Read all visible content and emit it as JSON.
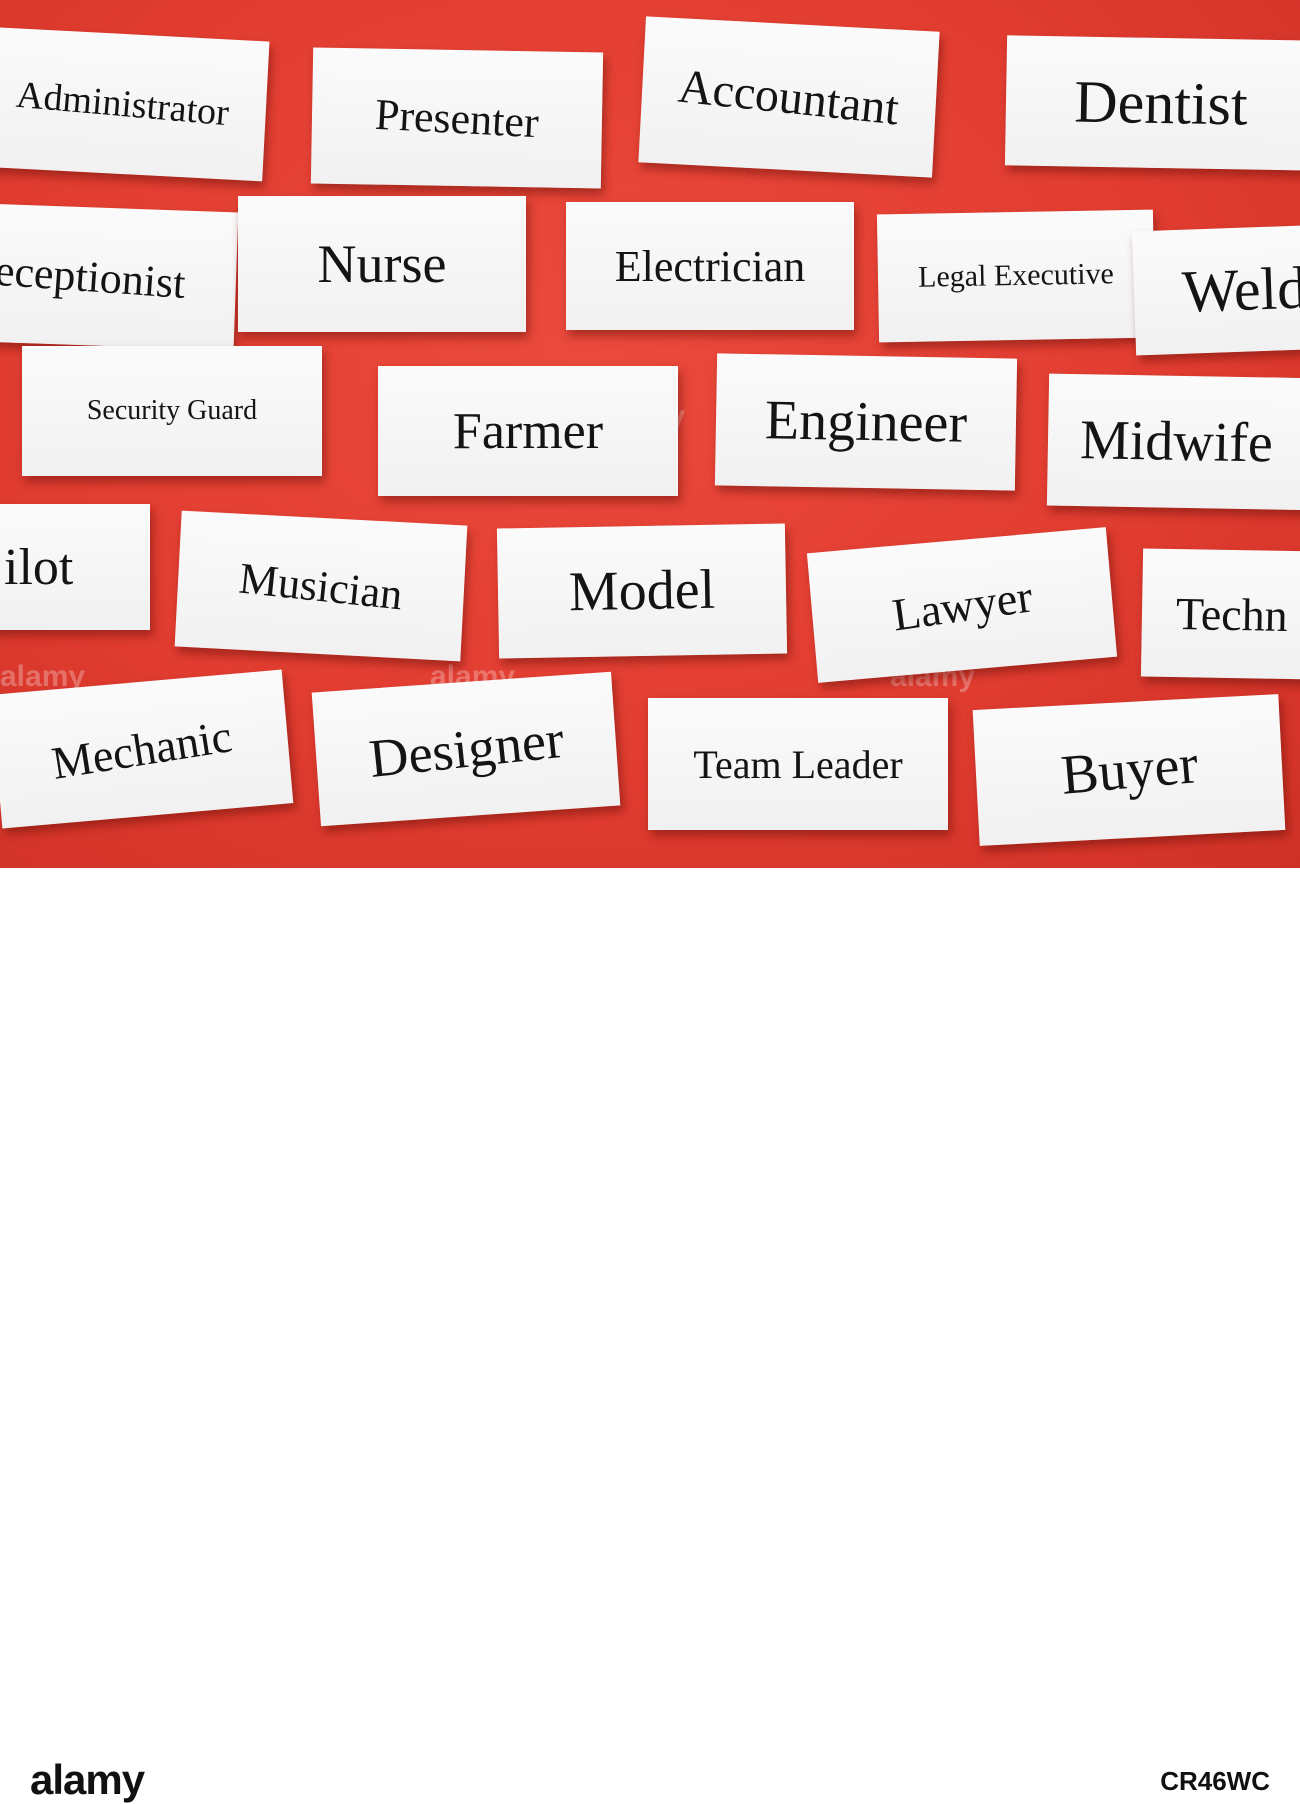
{
  "cards": [
    {
      "id": "administrator",
      "text": "Administrator"
    },
    {
      "id": "presenter",
      "text": "Presenter"
    },
    {
      "id": "accountant",
      "text": "Accountant"
    },
    {
      "id": "dentist",
      "text": "Dentist"
    },
    {
      "id": "receptionist",
      "text": "eceptionist"
    },
    {
      "id": "nurse",
      "text": "Nurse"
    },
    {
      "id": "electrician",
      "text": "Electrician"
    },
    {
      "id": "legal-executive",
      "text": "Legal Executive"
    },
    {
      "id": "welder",
      "text": "Weld"
    },
    {
      "id": "security-guard",
      "text": "Security Guard"
    },
    {
      "id": "farmer",
      "text": "Farmer"
    },
    {
      "id": "engineer",
      "text": "Engineer"
    },
    {
      "id": "midwife",
      "text": "Midwife"
    },
    {
      "id": "pilot",
      "text": "ilot"
    },
    {
      "id": "musician",
      "text": "Musician"
    },
    {
      "id": "model",
      "text": "Model"
    },
    {
      "id": "lawyer",
      "text": "Lawyer"
    },
    {
      "id": "technician",
      "text": "Techn"
    },
    {
      "id": "mechanic",
      "text": "Mechanic"
    },
    {
      "id": "designer",
      "text": "Designer"
    },
    {
      "id": "team-leader",
      "text": "Team Leader"
    },
    {
      "id": "buyer",
      "text": "Buyer"
    }
  ],
  "watermark": {
    "brand": "alamy",
    "image_code": "CR46WC"
  },
  "colors": {
    "background": "#e23d31",
    "card": "#f6f6f6",
    "text": "#141414"
  }
}
